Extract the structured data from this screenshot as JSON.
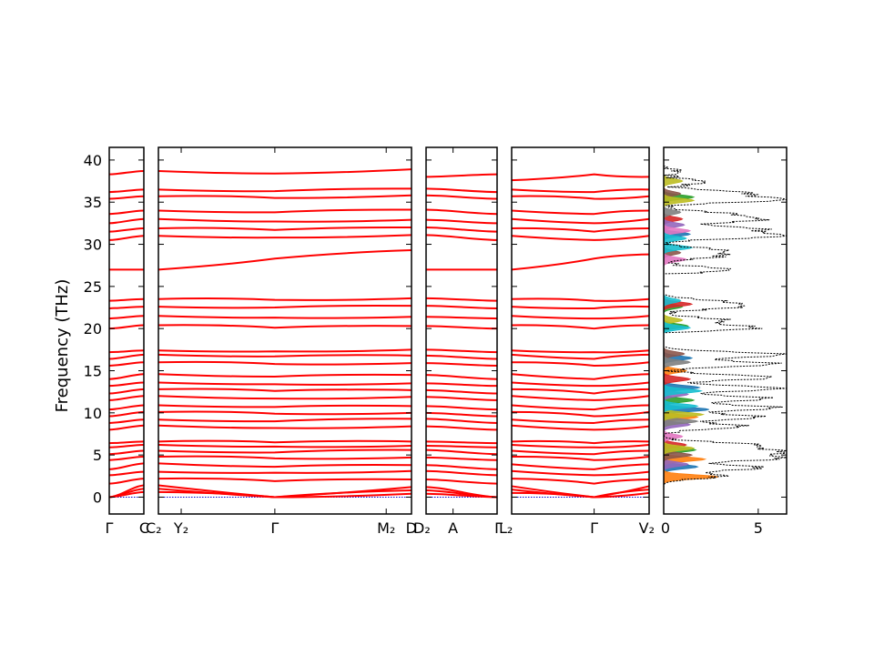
{
  "chart_data": {
    "type": "line",
    "ylabel": "Frequency (THz)",
    "ylim": [
      -2,
      41.5
    ],
    "yticks": [
      0,
      5,
      10,
      15,
      20,
      25,
      30,
      35,
      40
    ],
    "band_color": "#ff0000",
    "zero_line_color": "#0000cc",
    "panels": [
      {
        "id": "p1",
        "ticks": [
          {
            "label": "Γ",
            "pos": 0
          },
          {
            "label": "C",
            "pos": 1
          }
        ],
        "bands_start": [
          0,
          0,
          0,
          1.6,
          2.6,
          3.3,
          4.4,
          5.1,
          5.9,
          6.4,
          8.0,
          8.8,
          9.6,
          10.4,
          11.5,
          12.3,
          13.2,
          14.0,
          15.6,
          16.4,
          17.2,
          20.0,
          21.2,
          22.4,
          23.3,
          27.0,
          30.5,
          31.5,
          32.5,
          33.6,
          35.4,
          36.2,
          38.3
        ],
        "bands_end": [
          0.6,
          1.0,
          1.4,
          2.2,
          3.0,
          4.0,
          4.8,
          5.5,
          6.2,
          6.6,
          8.5,
          9.2,
          10.1,
          10.9,
          12.0,
          12.8,
          13.6,
          14.6,
          16.0,
          16.9,
          17.4,
          20.4,
          21.5,
          22.6,
          23.5,
          27.0,
          31.0,
          31.9,
          33.0,
          34.0,
          35.7,
          36.5,
          38.7
        ]
      },
      {
        "id": "p2",
        "ticks": [
          {
            "label": "C₂",
            "pos": 0
          },
          {
            "label": "Y₂",
            "pos": 0.09
          },
          {
            "label": "Γ",
            "pos": 0.46
          },
          {
            "label": "M₂",
            "pos": 0.9
          },
          {
            "label": "D",
            "pos": 1
          }
        ],
        "bands_start": [
          0.6,
          1.0,
          1.4,
          2.2,
          3.0,
          4.0,
          4.8,
          5.5,
          6.2,
          6.6,
          8.5,
          9.2,
          10.1,
          10.9,
          12.0,
          12.8,
          13.6,
          14.6,
          16.0,
          16.9,
          17.4,
          20.4,
          21.5,
          22.6,
          23.5,
          27.0,
          31.0,
          31.9,
          33.0,
          34.0,
          35.7,
          36.5,
          38.7
        ],
        "bands_mid": [
          0,
          0,
          0,
          1.9,
          2.9,
          3.6,
          4.6,
          5.3,
          6.0,
          6.5,
          8.2,
          9.0,
          9.9,
          10.7,
          11.7,
          12.6,
          13.4,
          14.3,
          15.8,
          16.7,
          17.3,
          20.1,
          21.3,
          22.5,
          23.4,
          28.3,
          30.8,
          31.7,
          32.7,
          33.8,
          35.5,
          36.3,
          38.4
        ],
        "bands_end": [
          0.4,
          0.8,
          1.2,
          2.1,
          3.1,
          3.8,
          4.7,
          5.6,
          6.1,
          6.6,
          8.4,
          9.3,
          10.0,
          10.8,
          11.9,
          12.7,
          13.5,
          14.5,
          15.9,
          16.8,
          17.5,
          20.3,
          21.4,
          22.7,
          23.6,
          29.3,
          31.1,
          32.0,
          32.9,
          34.1,
          35.8,
          36.6,
          38.9
        ]
      },
      {
        "id": "p3",
        "ticks": [
          {
            "label": "D₂",
            "pos": 0
          },
          {
            "label": "A",
            "pos": 0.38
          },
          {
            "label": "Γ",
            "pos": 1
          }
        ],
        "bands_start": [
          0.4,
          0.8,
          1.2,
          2.1,
          3.1,
          3.8,
          4.7,
          5.6,
          6.1,
          6.6,
          8.4,
          9.3,
          10.0,
          10.8,
          11.9,
          12.7,
          13.5,
          14.5,
          15.9,
          16.8,
          17.5,
          20.3,
          21.4,
          22.7,
          23.6,
          27.0,
          31.1,
          32.0,
          32.9,
          34.1,
          35.8,
          36.6,
          38.0
        ],
        "bands_end": [
          0,
          0,
          0,
          1.6,
          2.6,
          3.3,
          4.4,
          5.1,
          5.9,
          6.4,
          8.0,
          8.8,
          9.6,
          10.4,
          11.5,
          12.3,
          13.2,
          14.0,
          15.6,
          16.4,
          17.2,
          20.0,
          21.2,
          22.4,
          23.3,
          27.0,
          30.5,
          31.5,
          32.5,
          33.6,
          35.4,
          36.2,
          38.3
        ]
      },
      {
        "id": "p4",
        "ticks": [
          {
            "label": "L₂",
            "pos": 0
          },
          {
            "label": "Γ",
            "pos": 0.6
          },
          {
            "label": "V₂",
            "pos": 1
          }
        ],
        "bands_start": [
          0.5,
          0.9,
          1.3,
          2.2,
          3.1,
          3.9,
          4.8,
          5.5,
          6.2,
          6.6,
          8.5,
          9.2,
          10.1,
          10.9,
          12.0,
          12.8,
          13.6,
          14.6,
          16.0,
          16.9,
          17.4,
          20.4,
          21.5,
          22.6,
          23.5,
          27.0,
          31.0,
          31.9,
          33.0,
          34.0,
          35.7,
          36.5,
          37.6
        ],
        "bands_mid": [
          0,
          0,
          0,
          1.6,
          2.6,
          3.3,
          4.4,
          5.1,
          5.9,
          6.4,
          8.0,
          8.8,
          9.6,
          10.4,
          11.5,
          12.3,
          13.2,
          14.0,
          15.6,
          16.4,
          17.2,
          20.0,
          21.2,
          22.4,
          23.3,
          28.3,
          30.5,
          31.5,
          32.5,
          33.6,
          35.4,
          36.2,
          38.3
        ],
        "bands_end": [
          0.5,
          0.9,
          1.3,
          2.1,
          3.0,
          3.9,
          4.8,
          5.5,
          6.2,
          6.6,
          8.4,
          9.2,
          10.1,
          10.9,
          12.0,
          12.8,
          13.6,
          14.6,
          16.0,
          16.9,
          17.4,
          20.4,
          21.5,
          22.6,
          23.5,
          28.8,
          31.0,
          31.9,
          33.0,
          34.0,
          35.7,
          36.5,
          38.0
        ]
      }
    ],
    "dos": {
      "xlim": [
        0,
        6.5
      ],
      "xticks": [
        0,
        5
      ],
      "total_color": "#000000",
      "total_peaks": [
        {
          "f": 2.5,
          "v": 3.1
        },
        {
          "f": 3.5,
          "v": 5.2
        },
        {
          "f": 4.6,
          "v": 6.1
        },
        {
          "f": 5.4,
          "v": 6.3
        },
        {
          "f": 6.2,
          "v": 4.8
        },
        {
          "f": 8.4,
          "v": 4.2
        },
        {
          "f": 9.5,
          "v": 5.1
        },
        {
          "f": 10.6,
          "v": 6.0
        },
        {
          "f": 11.7,
          "v": 5.5
        },
        {
          "f": 12.9,
          "v": 6.3
        },
        {
          "f": 14.2,
          "v": 5.8
        },
        {
          "f": 15.8,
          "v": 5.9
        },
        {
          "f": 16.9,
          "v": 6.4
        },
        {
          "f": 20.1,
          "v": 4.9
        },
        {
          "f": 21.0,
          "v": 3.1
        },
        {
          "f": 22.6,
          "v": 3.7
        },
        {
          "f": 23.2,
          "v": 2.6
        },
        {
          "f": 27.0,
          "v": 3.5
        },
        {
          "f": 28.6,
          "v": 2.8
        },
        {
          "f": 29.3,
          "v": 2.9
        },
        {
          "f": 31.0,
          "v": 6.3
        },
        {
          "f": 31.8,
          "v": 5.0
        },
        {
          "f": 32.9,
          "v": 4.9
        },
        {
          "f": 33.6,
          "v": 3.3
        },
        {
          "f": 35.3,
          "v": 6.4
        },
        {
          "f": 36.1,
          "v": 4.3
        },
        {
          "f": 37.4,
          "v": 2.2
        },
        {
          "f": 38.6,
          "v": 0.8
        }
      ],
      "partials": [
        {
          "color": "#1f77b4",
          "peaks": [
            {
              "f": 3.6,
              "v": 1.8
            },
            {
              "f": 10.4,
              "v": 2.4
            },
            {
              "f": 13.0,
              "v": 1.9
            },
            {
              "f": 16.5,
              "v": 1.5
            },
            {
              "f": 31.2,
              "v": 1.4
            }
          ]
        },
        {
          "color": "#ff7f0e",
          "peaks": [
            {
              "f": 2.4,
              "v": 2.9
            },
            {
              "f": 4.5,
              "v": 2.2
            },
            {
              "f": 9.5,
              "v": 1.8
            },
            {
              "f": 15.0,
              "v": 1.2
            }
          ]
        },
        {
          "color": "#2ca02c",
          "peaks": [
            {
              "f": 5.6,
              "v": 1.7
            },
            {
              "f": 11.5,
              "v": 1.6
            },
            {
              "f": 20.3,
              "v": 1.3
            },
            {
              "f": 22.6,
              "v": 1.0
            },
            {
              "f": 35.6,
              "v": 1.6
            }
          ]
        },
        {
          "color": "#d62728",
          "peaks": [
            {
              "f": 6.2,
              "v": 1.2
            },
            {
              "f": 14.0,
              "v": 1.4
            },
            {
              "f": 22.9,
              "v": 1.5
            },
            {
              "f": 33.0,
              "v": 1.0
            }
          ]
        },
        {
          "color": "#9467bd",
          "peaks": [
            {
              "f": 3.9,
              "v": 1.3
            },
            {
              "f": 8.6,
              "v": 1.4
            },
            {
              "f": 12.2,
              "v": 1.3
            },
            {
              "f": 32.3,
              "v": 1.1
            }
          ]
        },
        {
          "color": "#8c564b",
          "peaks": [
            {
              "f": 5.0,
              "v": 1.5
            },
            {
              "f": 17.0,
              "v": 1.1
            },
            {
              "f": 29.0,
              "v": 0.9
            },
            {
              "f": 36.0,
              "v": 0.9
            }
          ]
        },
        {
          "color": "#e377c2",
          "peaks": [
            {
              "f": 7.2,
              "v": 1.0
            },
            {
              "f": 28.2,
              "v": 1.2
            },
            {
              "f": 31.6,
              "v": 1.4
            }
          ]
        },
        {
          "color": "#7f7f7f",
          "peaks": [
            {
              "f": 9.0,
              "v": 1.8
            },
            {
              "f": 16.0,
              "v": 1.4
            },
            {
              "f": 33.8,
              "v": 0.9
            }
          ]
        },
        {
          "color": "#bcbd22",
          "peaks": [
            {
              "f": 5.8,
              "v": 1.6
            },
            {
              "f": 9.8,
              "v": 2.1
            },
            {
              "f": 21.0,
              "v": 1.0
            },
            {
              "f": 35.2,
              "v": 1.6
            },
            {
              "f": 37.5,
              "v": 1.0
            }
          ]
        },
        {
          "color": "#17becf",
          "peaks": [
            {
              "f": 10.8,
              "v": 1.8
            },
            {
              "f": 12.6,
              "v": 2.0
            },
            {
              "f": 20.1,
              "v": 1.4
            },
            {
              "f": 23.3,
              "v": 0.9
            },
            {
              "f": 29.6,
              "v": 1.5
            },
            {
              "f": 30.7,
              "v": 1.2
            }
          ]
        }
      ]
    }
  }
}
